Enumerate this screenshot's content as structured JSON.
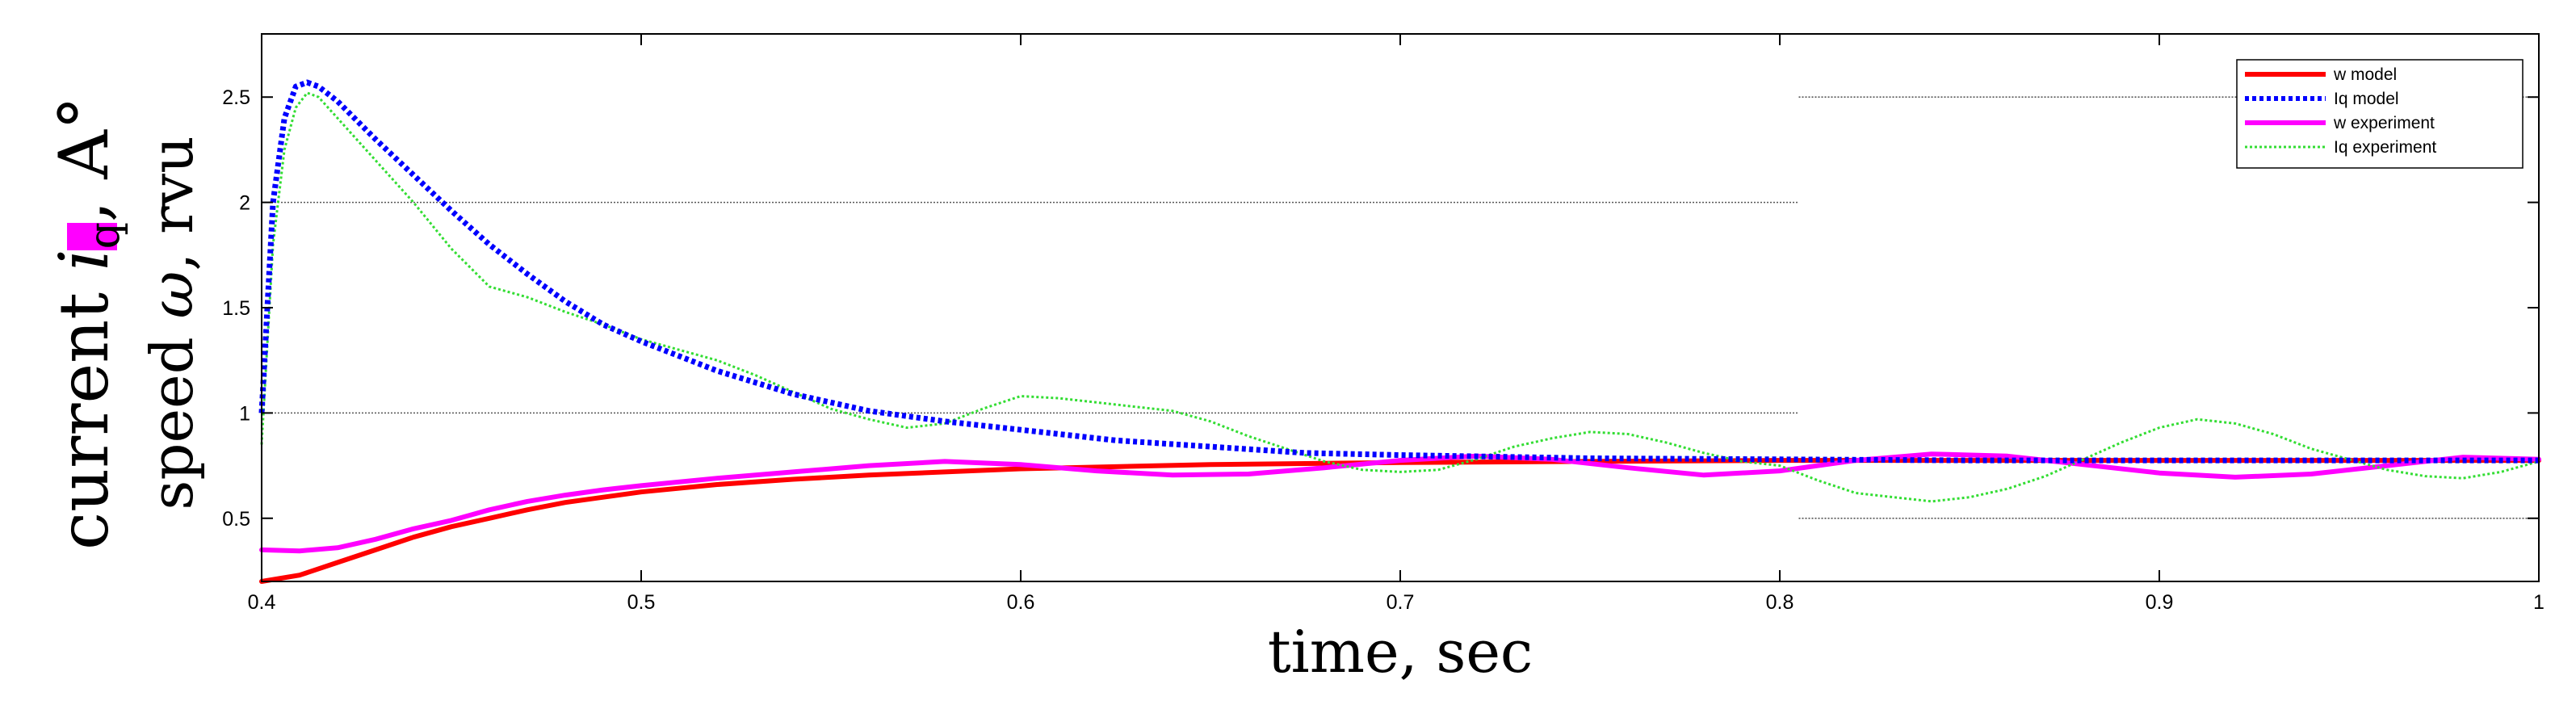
{
  "chart_data": {
    "type": "line",
    "xlabel": "time, sec",
    "ylabel_outer": "current i_q, A°",
    "ylabel_inner": "speed ω, rvu",
    "ylabel_outer_parts": {
      "pre": "current ",
      "symbol": "i",
      "sub": "q",
      "post": ", A°"
    },
    "ylabel_inner_parts": {
      "pre": "speed ",
      "symbol": "ω",
      "post": ", rvu"
    },
    "xlim": [
      0.4,
      1.0
    ],
    "ylim": [
      0.2,
      2.8
    ],
    "xticks": [
      0.4,
      0.5,
      0.6,
      0.7,
      0.8,
      0.9,
      1.0
    ],
    "xtick_labels": [
      "0.4",
      "0.5",
      "0.6",
      "0.7",
      "0.8",
      "0.9",
      "1"
    ],
    "yticks": [
      0.5,
      1,
      1.5,
      2,
      2.5
    ],
    "ytick_labels": [
      "0.5",
      "1",
      "1.5",
      "2",
      "2.5"
    ],
    "grid": "partial dotted horizontal reference lines",
    "legend_position": "top-right",
    "reference_lines": [
      {
        "y": 2.5,
        "x": [
          0.805,
          1.0
        ]
      },
      {
        "y": 2.0,
        "x": [
          0.4,
          0.805
        ]
      },
      {
        "y": 1.0,
        "x": [
          0.4,
          0.805
        ]
      },
      {
        "y": 0.5,
        "x": [
          0.805,
          1.0
        ]
      }
    ],
    "series": [
      {
        "name": "w model",
        "color": "#ff0000",
        "style": "solid",
        "x": [
          0.4,
          0.41,
          0.42,
          0.43,
          0.44,
          0.45,
          0.46,
          0.47,
          0.48,
          0.49,
          0.5,
          0.52,
          0.54,
          0.56,
          0.58,
          0.6,
          0.625,
          0.65,
          0.675,
          0.7,
          0.75,
          0.8,
          0.85,
          0.9,
          0.95,
          1.0
        ],
        "y": [
          0.2,
          0.23,
          0.29,
          0.35,
          0.41,
          0.46,
          0.5,
          0.54,
          0.575,
          0.6,
          0.625,
          0.66,
          0.685,
          0.705,
          0.72,
          0.735,
          0.745,
          0.755,
          0.76,
          0.765,
          0.77,
          0.775,
          0.775,
          0.775,
          0.775,
          0.775
        ]
      },
      {
        "name": "Iq model",
        "color": "#0000ff",
        "style": "dotted",
        "x": [
          0.4,
          0.403,
          0.406,
          0.409,
          0.412,
          0.415,
          0.42,
          0.43,
          0.44,
          0.45,
          0.46,
          0.47,
          0.48,
          0.49,
          0.5,
          0.52,
          0.54,
          0.56,
          0.58,
          0.6,
          0.625,
          0.65,
          0.675,
          0.7,
          0.75,
          0.8,
          0.85,
          0.9,
          0.95,
          1.0
        ],
        "y": [
          1.0,
          2.0,
          2.4,
          2.55,
          2.57,
          2.55,
          2.48,
          2.3,
          2.13,
          1.96,
          1.8,
          1.66,
          1.53,
          1.42,
          1.34,
          1.2,
          1.09,
          1.01,
          0.96,
          0.92,
          0.87,
          0.84,
          0.81,
          0.8,
          0.785,
          0.78,
          0.775,
          0.775,
          0.775,
          0.775
        ]
      },
      {
        "name": "w experiment",
        "color": "#ff00ff",
        "style": "solid",
        "x": [
          0.4,
          0.41,
          0.42,
          0.43,
          0.44,
          0.45,
          0.46,
          0.47,
          0.48,
          0.49,
          0.5,
          0.52,
          0.54,
          0.56,
          0.58,
          0.6,
          0.62,
          0.64,
          0.66,
          0.68,
          0.7,
          0.72,
          0.74,
          0.76,
          0.78,
          0.8,
          0.82,
          0.84,
          0.86,
          0.88,
          0.9,
          0.92,
          0.94,
          0.96,
          0.98,
          1.0
        ],
        "y": [
          0.35,
          0.345,
          0.36,
          0.4,
          0.45,
          0.49,
          0.54,
          0.58,
          0.61,
          0.635,
          0.655,
          0.69,
          0.72,
          0.75,
          0.77,
          0.755,
          0.725,
          0.705,
          0.71,
          0.74,
          0.775,
          0.795,
          0.78,
          0.74,
          0.705,
          0.725,
          0.775,
          0.805,
          0.795,
          0.755,
          0.715,
          0.695,
          0.71,
          0.75,
          0.79,
          0.78
        ]
      },
      {
        "name": "Iq experiment",
        "color": "#33dd33",
        "style": "dotted",
        "x": [
          0.4,
          0.403,
          0.406,
          0.409,
          0.412,
          0.415,
          0.42,
          0.43,
          0.44,
          0.45,
          0.46,
          0.47,
          0.48,
          0.49,
          0.5,
          0.51,
          0.52,
          0.53,
          0.54,
          0.55,
          0.56,
          0.57,
          0.58,
          0.59,
          0.6,
          0.61,
          0.62,
          0.63,
          0.64,
          0.65,
          0.66,
          0.67,
          0.68,
          0.69,
          0.7,
          0.71,
          0.72,
          0.73,
          0.74,
          0.75,
          0.76,
          0.77,
          0.78,
          0.79,
          0.8,
          0.81,
          0.82,
          0.83,
          0.84,
          0.85,
          0.86,
          0.87,
          0.88,
          0.89,
          0.9,
          0.91,
          0.92,
          0.93,
          0.94,
          0.95,
          0.96,
          0.97,
          0.98,
          0.99,
          1.0
        ],
        "y": [
          0.85,
          1.8,
          2.25,
          2.45,
          2.52,
          2.5,
          2.4,
          2.2,
          2.0,
          1.78,
          1.6,
          1.55,
          1.48,
          1.42,
          1.35,
          1.3,
          1.25,
          1.18,
          1.1,
          1.02,
          0.97,
          0.93,
          0.95,
          1.02,
          1.08,
          1.07,
          1.05,
          1.03,
          1.01,
          0.96,
          0.89,
          0.83,
          0.77,
          0.73,
          0.72,
          0.73,
          0.78,
          0.84,
          0.88,
          0.91,
          0.9,
          0.86,
          0.81,
          0.77,
          0.75,
          0.68,
          0.62,
          0.6,
          0.58,
          0.6,
          0.64,
          0.7,
          0.78,
          0.86,
          0.93,
          0.97,
          0.95,
          0.9,
          0.83,
          0.78,
          0.73,
          0.7,
          0.69,
          0.72,
          0.77
        ]
      }
    ]
  }
}
